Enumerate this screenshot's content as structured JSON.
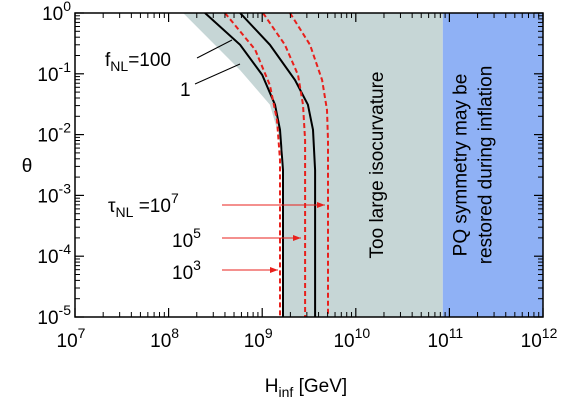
{
  "chart_data": {
    "type": "line",
    "xlabel": {
      "base": "H",
      "sub": "inf",
      "rest": " [GeV]"
    },
    "ylabel": {
      "base": "θ"
    },
    "log_x": true,
    "log_y": true,
    "minor_ticks": true,
    "xlim": [
      10000000,
      1000000000000
    ],
    "ylim": [
      1e-05,
      1
    ],
    "xticks": [
      {
        "value": 10000000,
        "label": {
          "base": "10",
          "sup": "7"
        }
      },
      {
        "value": 100000000,
        "label": {
          "base": "10",
          "sup": "8"
        }
      },
      {
        "value": 1000000000,
        "label": {
          "base": "10",
          "sup": "9"
        }
      },
      {
        "value": 10000000000,
        "label": {
          "base": "10",
          "sup": "10"
        }
      },
      {
        "value": 100000000000,
        "label": {
          "base": "10",
          "sup": "11"
        }
      },
      {
        "value": 1000000000000,
        "label": {
          "base": "10",
          "sup": "12"
        }
      }
    ],
    "yticks": [
      {
        "value": 1e-05,
        "label": {
          "base": "10",
          "sup": "-5"
        }
      },
      {
        "value": 0.0001,
        "label": {
          "base": "10",
          "sup": "-4"
        }
      },
      {
        "value": 0.001,
        "label": {
          "base": "10",
          "sup": "-3"
        }
      },
      {
        "value": 0.01,
        "label": {
          "base": "10",
          "sup": "-2"
        }
      },
      {
        "value": 0.1,
        "label": {
          "base": "10",
          "sup": "-1"
        }
      },
      {
        "value": 1,
        "label": {
          "base": "10",
          "sup": "0"
        }
      }
    ],
    "regions": [
      {
        "name": [
          "Too large isocurvature"
        ],
        "color": "#c6d6d6",
        "x": [
          143000000,
          580000000,
          1210000000,
          1670000000,
          1670000000,
          85000000000,
          85000000000
        ],
        "y": [
          1,
          0.115,
          0.031,
          0.0056,
          1e-05,
          1e-05,
          1
        ]
      },
      {
        "name": [
          "PQ symmetry may be",
          "restored during inflation"
        ],
        "color": "#8fb1f5",
        "x": [
          85000000000,
          1000000000000,
          1000000000000,
          85000000000
        ],
        "y": [
          1,
          1,
          1e-05,
          1e-05
        ]
      }
    ],
    "series": [
      {
        "color": "#000000",
        "dash": false,
        "x": [
          245000000,
          580000000,
          1000000000,
          1370000000,
          1550000000,
          1670000000,
          1670000000
        ],
        "y": [
          1,
          0.3,
          0.096,
          0.031,
          0.012,
          0.0026,
          1e-05
        ]
      },
      {
        "color": "#000000",
        "dash": false,
        "x": [
          580000000,
          1210000000,
          2240000000,
          3080000000,
          3490000000,
          3670000000,
          3670000000
        ],
        "y": [
          1,
          0.3,
          0.079,
          0.031,
          0.012,
          0.0026,
          1e-05
        ]
      },
      {
        "color": "#e8201c",
        "dash": true,
        "x": [
          400000000,
          840000000,
          1210000000,
          1440000000,
          1550000000,
          1550000000
        ],
        "y": [
          1,
          0.25,
          0.065,
          0.0174,
          0.0038,
          1e-05
        ]
      },
      {
        "color": "#e8201c",
        "dash": true,
        "x": [
          1020000000,
          1750000000,
          2410000000,
          2730000000,
          2870000000,
          2870000000
        ],
        "y": [
          1,
          0.3,
          0.096,
          0.031,
          0.0081,
          1e-05
        ]
      },
      {
        "color": "#e8201c",
        "dash": true,
        "x": [
          1980000000,
          3240000000,
          4360000000,
          4920000000,
          5050000000,
          5050000000
        ],
        "y": [
          1,
          0.3,
          0.079,
          0.0254,
          0.0081,
          1e-05
        ]
      }
    ],
    "annotations": [
      {
        "text": {
          "base": "f",
          "sub": "NL",
          "rest": "=100"
        }
      },
      {
        "text": {
          "base": "1"
        }
      },
      {
        "text": {
          "base": "τ",
          "sub": "NL",
          "rest": " =10",
          "sup": "7"
        }
      },
      {
        "text": {
          "base": "10",
          "sup": "5"
        }
      },
      {
        "text": {
          "base": "10",
          "sup": "3"
        }
      }
    ]
  }
}
